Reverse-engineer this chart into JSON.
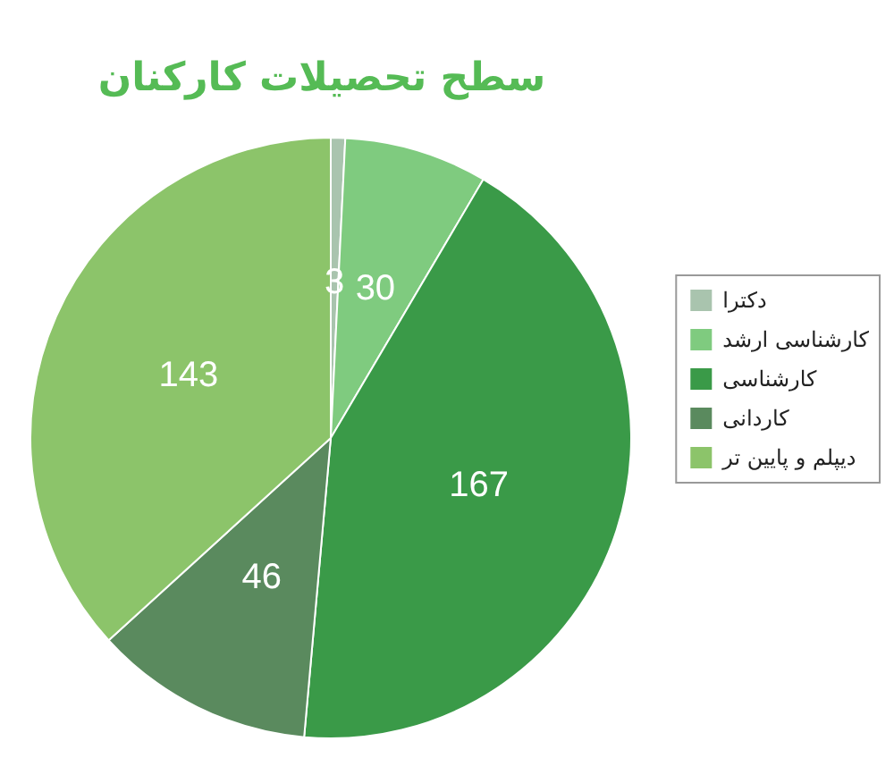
{
  "chart_data": {
    "type": "pie",
    "title": "سطح تحصیلات کارکنان",
    "categories": [
      "دکترا",
      "کارشناسی ارشد",
      "کارشناسی",
      "کاردانی",
      "دیپلم و پایین تر"
    ],
    "values": [
      3,
      30,
      167,
      46,
      143
    ],
    "colors": [
      "#a9c4ae",
      "#7fcb7f",
      "#3a9a48",
      "#5a8a5e",
      "#8cc46a"
    ],
    "data_labels": true,
    "legend": "right"
  }
}
